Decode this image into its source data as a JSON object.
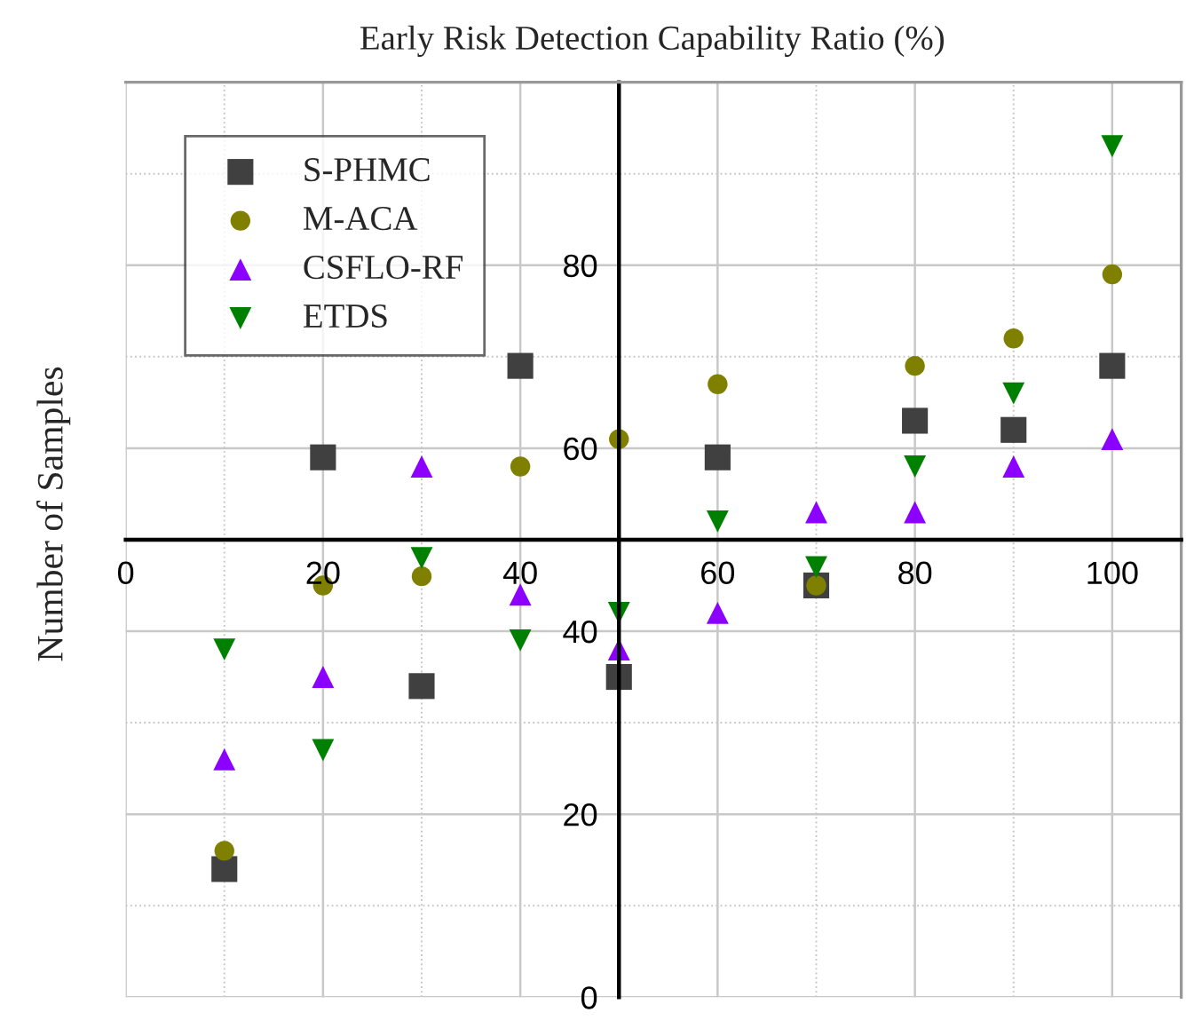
{
  "chart_data": {
    "type": "scatter",
    "title": "Early Risk Detection Capability Ratio (%)",
    "ylabel": "Number of Samples",
    "x": [
      10,
      20,
      30,
      40,
      50,
      60,
      70,
      80,
      90,
      100
    ],
    "series": [
      {
        "name": "S-PHMC",
        "color": "#404040",
        "marker": "square",
        "values": [
          14,
          59,
          34,
          69,
          35,
          59,
          45,
          63,
          62,
          69
        ]
      },
      {
        "name": "M-ACA",
        "color": "#808000",
        "marker": "circle",
        "values": [
          16,
          45,
          46,
          58,
          61,
          67,
          45,
          69,
          72,
          79
        ]
      },
      {
        "name": "CSFLO-RF",
        "color": "#8b00ff",
        "marker": "triangle",
        "values": [
          26,
          35,
          58,
          44,
          38,
          42,
          53,
          53,
          58,
          61
        ]
      },
      {
        "name": "ETDS",
        "color": "#008000",
        "marker": "triangle_down",
        "values": [
          38,
          27,
          48,
          39,
          42,
          52,
          47,
          58,
          66,
          93
        ]
      }
    ],
    "xlim": [
      0,
      107
    ],
    "ylim": [
      0,
      100
    ],
    "xticks": [
      0,
      {
        "value": 10,
        "label": null
      },
      20,
      {
        "value": 30,
        "label": null
      },
      40,
      {
        "value": 50,
        "label": null
      },
      60,
      {
        "value": 70,
        "label": null
      },
      80,
      {
        "value": 90,
        "label": null
      },
      100
    ],
    "yticks": [
      0,
      {
        "value": 10,
        "label": null
      },
      20,
      {
        "value": 30,
        "label": null
      },
      40,
      {
        "value": 50,
        "label": null
      },
      60,
      {
        "value": 70,
        "label": null
      },
      80,
      {
        "value": 90,
        "label": null
      }
    ],
    "grid": true,
    "legend": "top left"
  }
}
